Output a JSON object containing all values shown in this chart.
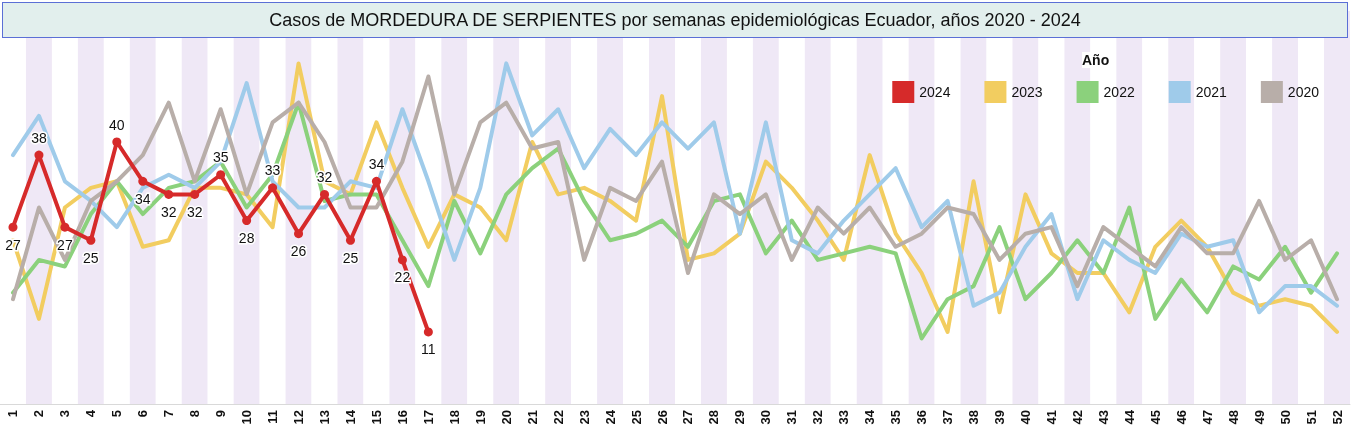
{
  "chart_data": {
    "type": "line",
    "title": "Casos de MORDEDURA DE SERPIENTES por semanas epidemiológicas Ecuador, años 2020 - 2024",
    "legend_title": "Año",
    "legend": "top right",
    "grid": false,
    "categories": [
      "1",
      "2",
      "3",
      "4",
      "5",
      "6",
      "7",
      "8",
      "9",
      "10",
      "11",
      "12",
      "13",
      "14",
      "15",
      "16",
      "17",
      "18",
      "19",
      "20",
      "21",
      "22",
      "23",
      "24",
      "25",
      "26",
      "27",
      "28",
      "29",
      "30",
      "31",
      "32",
      "33",
      "34",
      "35",
      "36",
      "37",
      "38",
      "39",
      "40",
      "41",
      "42",
      "43",
      "44",
      "45",
      "46",
      "47",
      "48",
      "49",
      "50",
      "51",
      "52"
    ],
    "series": [
      {
        "name": "2024",
        "color": "#d62a2a",
        "marker": "circle",
        "data_labels": true,
        "values": [
          27,
          38,
          27,
          25,
          40,
          34,
          32,
          32,
          35,
          28,
          33,
          26,
          32,
          25,
          34,
          22,
          11,
          null,
          null,
          null,
          null,
          null,
          null,
          null,
          null,
          null,
          null,
          null,
          null,
          null,
          null,
          null,
          null,
          null,
          null,
          null,
          null,
          null,
          null,
          null,
          null,
          null,
          null,
          null,
          null,
          null,
          null,
          null,
          null,
          null,
          null,
          null
        ]
      },
      {
        "name": "2023",
        "color": "#f2cd60",
        "values": [
          25,
          13,
          30,
          33,
          34,
          24,
          25,
          33,
          33,
          32,
          27,
          52,
          34,
          32,
          43,
          33,
          24,
          32,
          30,
          25,
          40,
          32,
          33,
          31,
          28,
          47,
          22,
          23,
          26,
          37,
          33,
          28,
          22,
          38,
          26,
          20,
          11,
          34,
          14,
          32,
          23,
          20,
          20,
          14,
          24,
          28,
          24,
          17,
          15,
          16,
          15,
          11
        ]
      },
      {
        "name": "2022",
        "color": "#8bd17c",
        "values": [
          17,
          22,
          21,
          29,
          34,
          29,
          33,
          34,
          37,
          30,
          35,
          46,
          31,
          32,
          32,
          25,
          18,
          31,
          23,
          32,
          36,
          39,
          31,
          25,
          26,
          28,
          24,
          31,
          32,
          23,
          28,
          22,
          23,
          24,
          23,
          10,
          16,
          18,
          27,
          16,
          20,
          25,
          20,
          30,
          13,
          19,
          14,
          21,
          19,
          24,
          17,
          23
        ]
      },
      {
        "name": "2021",
        "color": "#9fcbea",
        "values": [
          38,
          44,
          34,
          31,
          27,
          33,
          35,
          33,
          37,
          49,
          34,
          30,
          30,
          34,
          33,
          45,
          34,
          22,
          33,
          52,
          41,
          45,
          36,
          42,
          38,
          43,
          39,
          43,
          26,
          43,
          25,
          23,
          28,
          32,
          36,
          27,
          31,
          15,
          17,
          24,
          29,
          16,
          25,
          22,
          20,
          26,
          24,
          25,
          14,
          18,
          18,
          15
        ]
      },
      {
        "name": "2020",
        "color": "#b8aea9",
        "values": [
          16,
          30,
          22,
          31,
          34,
          38,
          46,
          34,
          45,
          32,
          43,
          46,
          40,
          30,
          30,
          37,
          50,
          32,
          43,
          46,
          39,
          40,
          22,
          33,
          31,
          37,
          20,
          32,
          29,
          32,
          22,
          30,
          26,
          30,
          24,
          26,
          30,
          29,
          22,
          26,
          27,
          18,
          27,
          24,
          21,
          27,
          23,
          23,
          31,
          22,
          25,
          16
        ]
      }
    ]
  }
}
